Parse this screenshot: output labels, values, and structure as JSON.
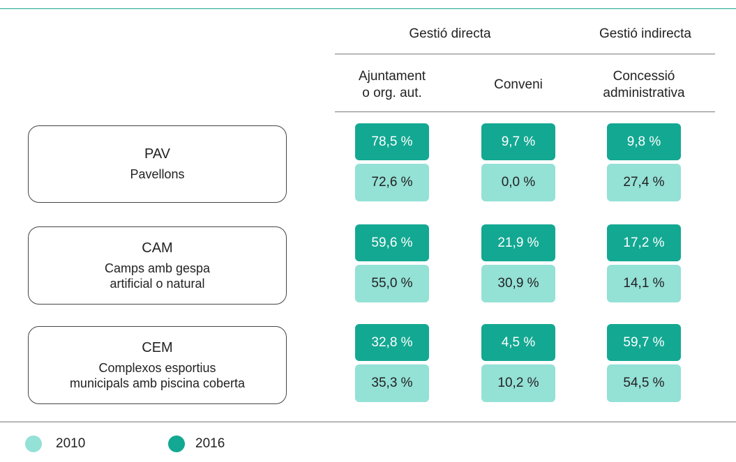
{
  "groups": [
    "Gestió directa",
    "Gestió indirecta"
  ],
  "columns": [
    [
      "Ajuntament",
      "o org. aut."
    ],
    [
      "Conveni"
    ],
    [
      "Concessió",
      "administrativa"
    ]
  ],
  "rows": [
    {
      "code": "PAV",
      "name": [
        "Pavellons"
      ],
      "y2016": [
        "78,5 %",
        "9,7 %",
        "9,8 %"
      ],
      "y2010": [
        "72,6 %",
        "0,0 %",
        "27,4 %"
      ]
    },
    {
      "code": "CAM",
      "name": [
        "Camps amb gespa",
        "artificial o natural"
      ],
      "y2016": [
        "59,6 %",
        "21,9 %",
        "17,2 %"
      ],
      "y2010": [
        "55,0 %",
        "30,9 %",
        "14,1 %"
      ]
    },
    {
      "code": "CEM",
      "name": [
        "Complexos esportius",
        "municipals amb piscina coberta"
      ],
      "y2016": [
        "32,8 %",
        "4,5 %",
        "59,7 %"
      ],
      "y2010": [
        "35,3 %",
        "10,2 %",
        "54,5 %"
      ]
    }
  ],
  "legend": [
    "2010",
    "2016"
  ]
}
